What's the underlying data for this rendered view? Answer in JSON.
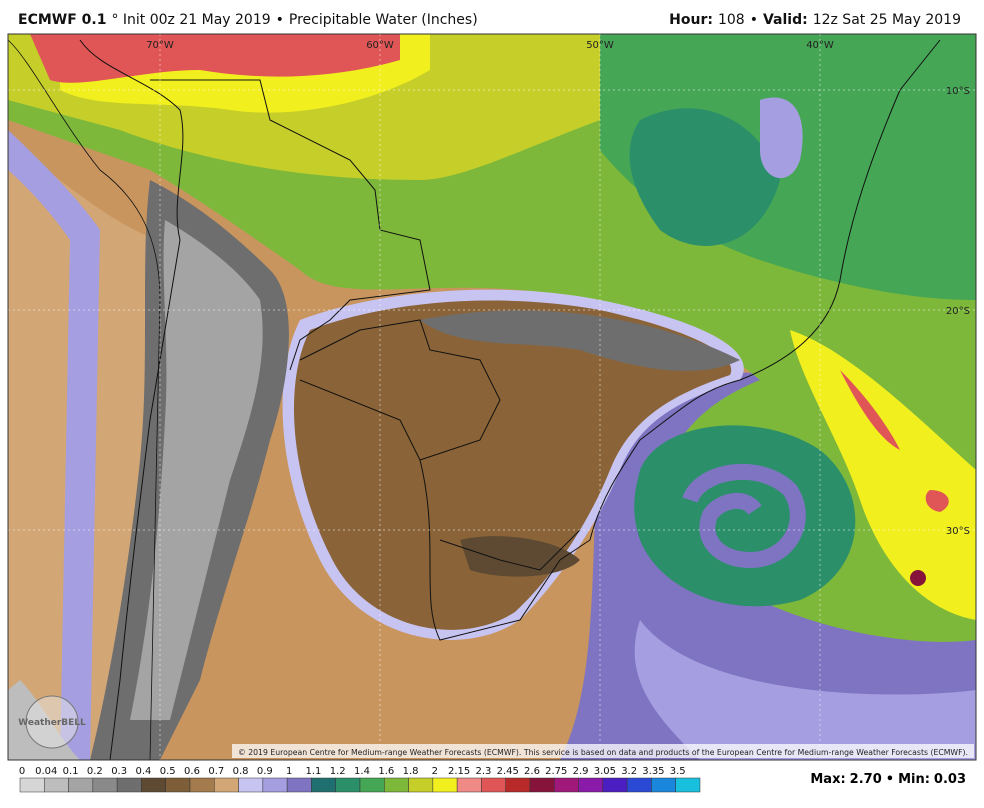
{
  "header": {
    "left": [
      {
        "t": "ECMWF 0.1",
        "b": true
      },
      {
        "t": "° Init 00z 21 May 2019"
      },
      {
        "t": "•"
      },
      {
        "t": "Precipitable Water (Inches)"
      }
    ],
    "right": [
      {
        "t": "Hour:",
        "b": true
      },
      {
        "t": "108"
      },
      {
        "t": "•"
      },
      {
        "t": "Valid:",
        "b": true
      },
      {
        "t": "12z Sat 25 May 2019"
      }
    ]
  },
  "map": {
    "lon_labels": [
      "70°W",
      "60°W",
      "50°W",
      "40°W"
    ],
    "lat_labels": [
      "10°S",
      "20°S",
      "30°S"
    ],
    "copyright": "© 2019 European Centre for Medium-range Weather Forecasts (ECMWF). This service is based on data and products of the European Centre for Medium-range Weather Forecasts (ECMWF).",
    "logo": "WeatherBELL"
  },
  "legend": {
    "levels": [
      {
        "label": "0",
        "color": "#d6d6d6"
      },
      {
        "label": "0.04",
        "color": "#bdbdbd"
      },
      {
        "label": "0.1",
        "color": "#a4a4a4"
      },
      {
        "label": "0.2",
        "color": "#8a8a8a"
      },
      {
        "label": "0.3",
        "color": "#6e6e6e"
      },
      {
        "label": "0.4",
        "color": "#5e4a32"
      },
      {
        "label": "0.5",
        "color": "#7d5e38"
      },
      {
        "label": "0.6",
        "color": "#a37b4c"
      },
      {
        "label": "0.7",
        "color": "#d3a676"
      },
      {
        "label": "0.8",
        "color": "#c8c4f2"
      },
      {
        "label": "0.9",
        "color": "#a59ee0"
      },
      {
        "label": "1",
        "color": "#7f74c2"
      },
      {
        "label": "1.1",
        "color": "#1f6f70"
      },
      {
        "label": "1.2",
        "color": "#2b8f6a"
      },
      {
        "label": "1.4",
        "color": "#45a656"
      },
      {
        "label": "1.6",
        "color": "#7db83a"
      },
      {
        "label": "1.8",
        "color": "#c6cf2a"
      },
      {
        "label": "2",
        "color": "#f2ef1e"
      },
      {
        "label": "2.15",
        "color": "#f08a86"
      },
      {
        "label": "2.3",
        "color": "#e05656"
      },
      {
        "label": "2.45",
        "color": "#b82a2a"
      },
      {
        "label": "2.6",
        "color": "#86143a"
      },
      {
        "label": "2.75",
        "color": "#a0187a"
      },
      {
        "label": "2.9",
        "color": "#8a1aa8"
      },
      {
        "label": "3.05",
        "color": "#4a1ec0"
      },
      {
        "label": "3.2",
        "color": "#2a4ad6"
      },
      {
        "label": "3.35",
        "color": "#1a86dc"
      },
      {
        "label": "3.5",
        "color": "#18c0de"
      }
    ]
  },
  "stats": [
    {
      "t": "Max:",
      "b": true
    },
    {
      "t": "2.70",
      "b": true
    },
    {
      "t": "•",
      "b": true
    },
    {
      "t": "Min:",
      "b": true
    },
    {
      "t": "0.03",
      "b": true
    }
  ]
}
